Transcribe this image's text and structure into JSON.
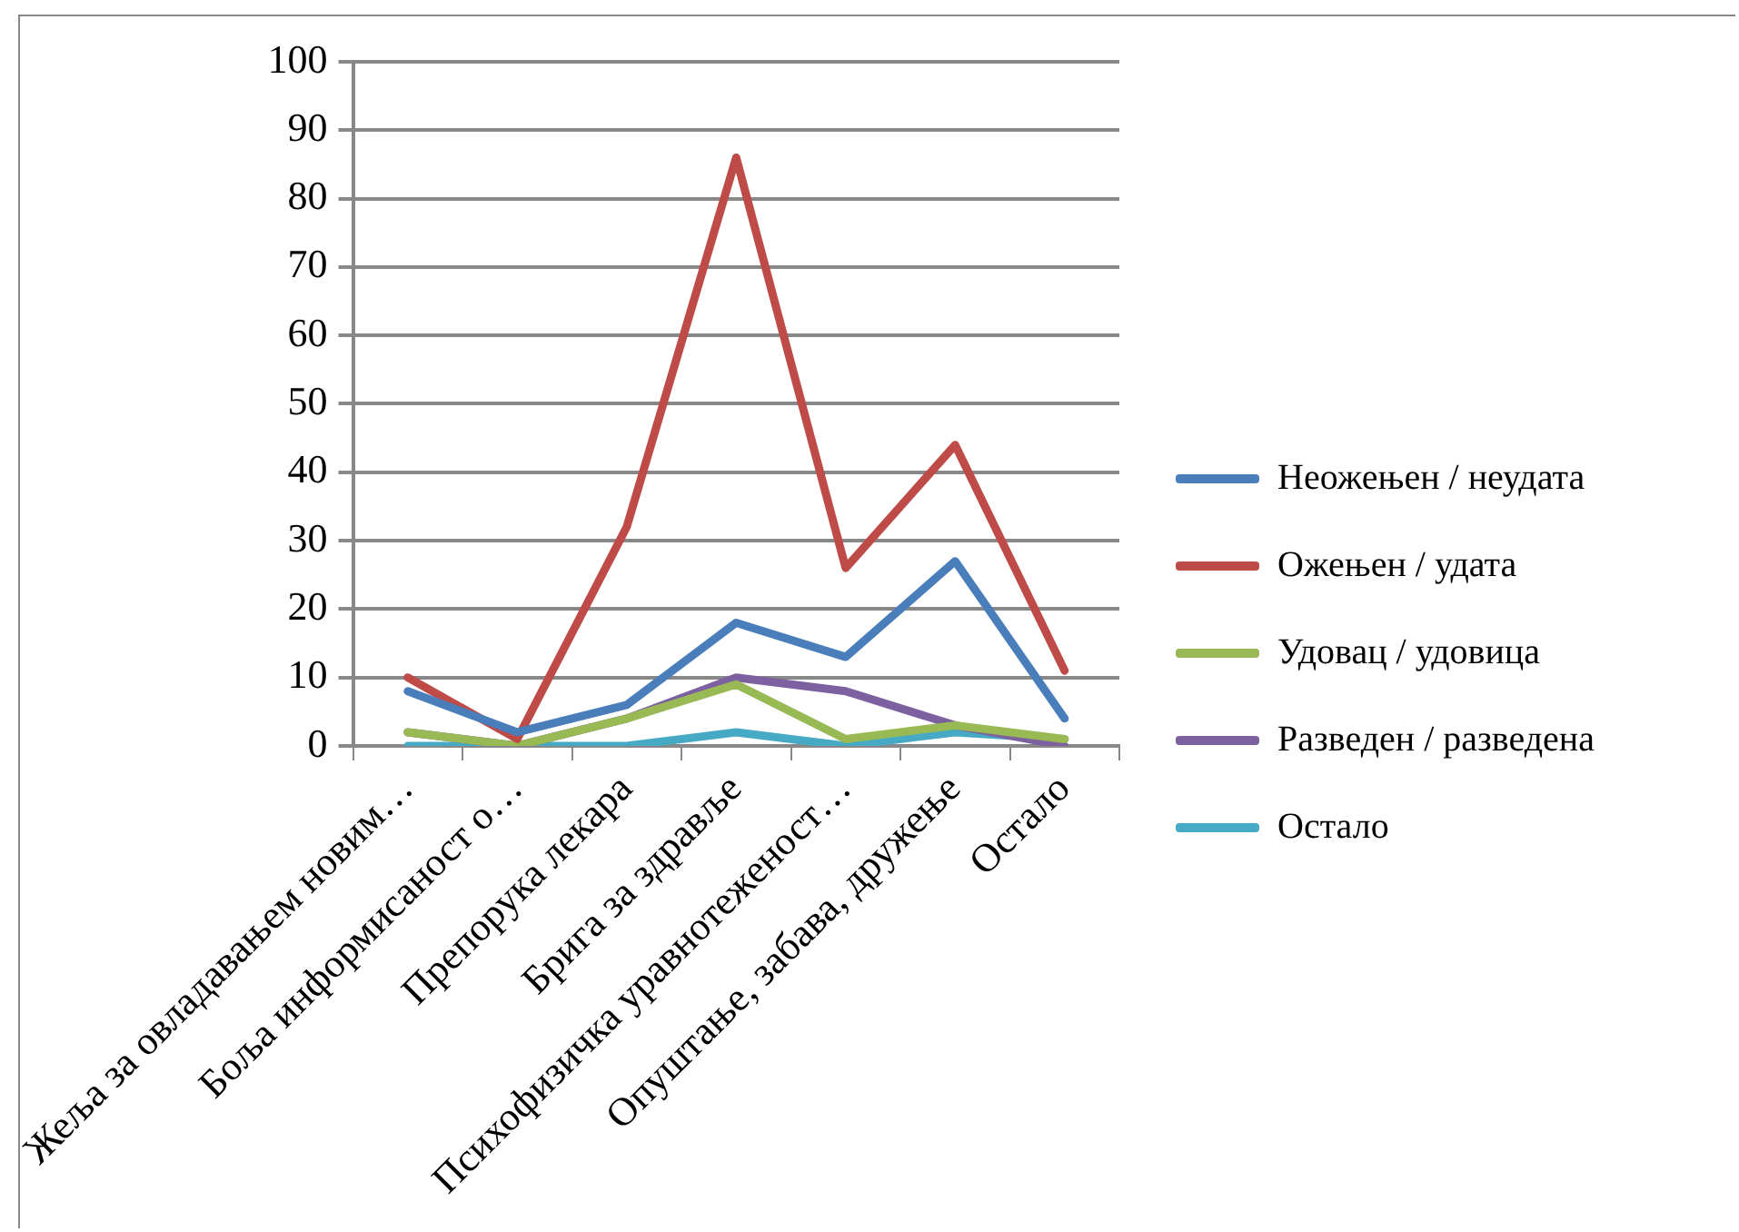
{
  "chart_data": {
    "type": "line",
    "categories": [
      "Жеља за овладавањем новим…",
      "Боља информисаност о…",
      "Препорука лекара",
      "Брига за здравље",
      "Психофизичка уравнотеженост…",
      "Опуштање, забава, дружење",
      "Остало"
    ],
    "series": [
      {
        "name": "Неожењен / неудата",
        "color": "#4a7ebb",
        "values": [
          8,
          2,
          6,
          18,
          13,
          27,
          4
        ]
      },
      {
        "name": "Ожењен / удата",
        "color": "#be4b48",
        "values": [
          10,
          1,
          32,
          86,
          26,
          44,
          11
        ]
      },
      {
        "name": "Удовац / удовица",
        "color": "#98b954",
        "values": [
          2,
          0,
          4,
          9,
          1,
          3,
          1
        ]
      },
      {
        "name": "Разведен / разведена",
        "color": "#7d60a0",
        "values": [
          2,
          0,
          4,
          10,
          8,
          3,
          0
        ]
      },
      {
        "name": "Остало",
        "color": "#46aac5",
        "values": [
          0,
          0,
          0,
          2,
          0,
          2,
          1
        ]
      }
    ],
    "ylim": [
      0,
      100
    ],
    "yticks": [
      0,
      10,
      20,
      30,
      40,
      50,
      60,
      70,
      80,
      90,
      100
    ],
    "grid": "y",
    "legend": "right",
    "marker": "none",
    "line_style": "solid"
  }
}
